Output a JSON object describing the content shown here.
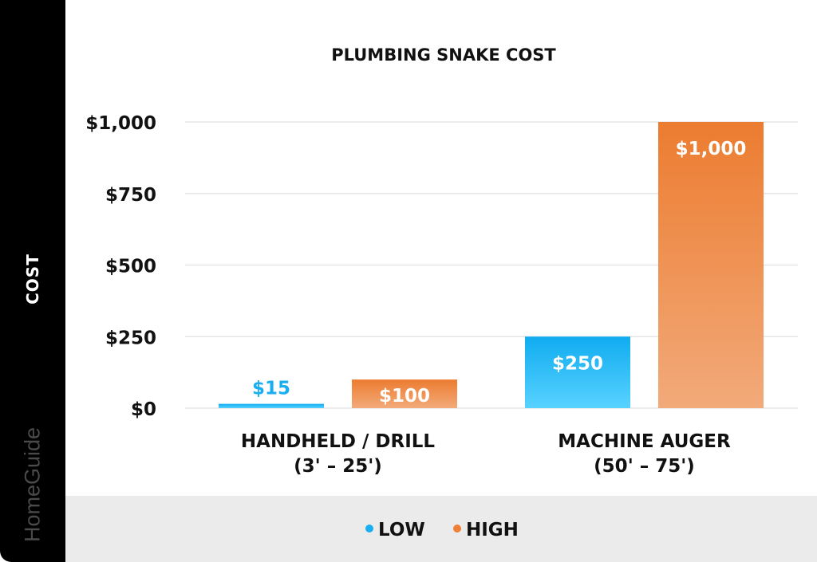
{
  "brand": "HomeGuide",
  "chart_data": {
    "type": "bar",
    "title": "PLUMBING SNAKE COST",
    "ylabel": "COST",
    "xlabel": "",
    "categories": [
      [
        "HANDHELD / DRILL",
        "(3' – 25')"
      ],
      [
        "MACHINE AUGER",
        "(50' – 75')"
      ]
    ],
    "series": [
      {
        "name": "LOW",
        "values": [
          15,
          250
        ],
        "labels": [
          "$15",
          "$250"
        ],
        "color": "#1aaef0"
      },
      {
        "name": "HIGH",
        "values": [
          100,
          1000
        ],
        "labels": [
          "$100",
          "$1,000"
        ],
        "color": "#ee7f35"
      }
    ],
    "ylim": [
      0,
      1000
    ],
    "yticks": [
      0,
      250,
      500,
      750,
      1000
    ],
    "ytick_labels": [
      "$0",
      "$250",
      "$500",
      "$750",
      "$1,000"
    ],
    "grid": true,
    "legend_position": "bottom"
  }
}
